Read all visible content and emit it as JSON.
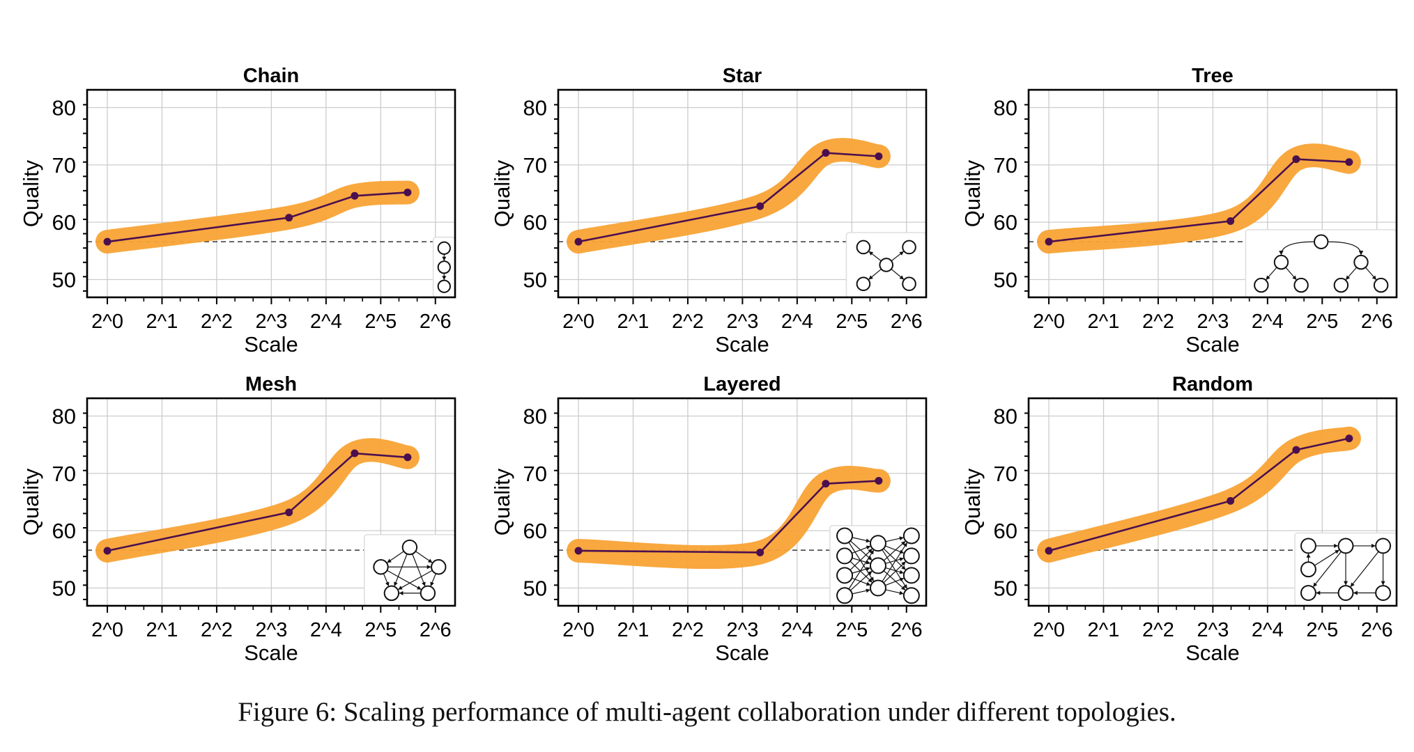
{
  "figure": {
    "caption": "Figure 6: Scaling performance of multi-agent collaboration under different topologies."
  },
  "chart_data": [
    {
      "type": "line",
      "title": "Chain",
      "xlabel": "Scale",
      "ylabel": "Quality",
      "x_scale": "log2",
      "x_ticks": [
        "2^0",
        "2^1",
        "2^2",
        "2^3",
        "2^4",
        "2^5",
        "2^6"
      ],
      "y_ticks": [
        50,
        60,
        70,
        80
      ],
      "ylim": [
        46.9,
        83.1
      ],
      "grid": true,
      "baseline": 56.6,
      "inset": "chain",
      "x": [
        1,
        10,
        23,
        45
      ],
      "values": [
        56.6,
        60.8,
        64.6,
        65.2
      ]
    },
    {
      "type": "line",
      "title": "Star",
      "xlabel": "Scale",
      "ylabel": "Quality",
      "x_scale": "log2",
      "x_ticks": [
        "2^0",
        "2^1",
        "2^2",
        "2^3",
        "2^4",
        "2^5",
        "2^6"
      ],
      "y_ticks": [
        50,
        60,
        70,
        80
      ],
      "ylim": [
        46.9,
        83.1
      ],
      "grid": true,
      "baseline": 56.6,
      "inset": "star",
      "x": [
        1,
        10,
        23,
        45
      ],
      "values": [
        56.6,
        62.8,
        72.1,
        71.5
      ]
    },
    {
      "type": "line",
      "title": "Tree",
      "xlabel": "Scale",
      "ylabel": "Quality",
      "x_scale": "log2",
      "x_ticks": [
        "2^0",
        "2^1",
        "2^2",
        "2^3",
        "2^4",
        "2^5",
        "2^6"
      ],
      "y_ticks": [
        50,
        60,
        70,
        80
      ],
      "ylim": [
        46.9,
        83.1
      ],
      "grid": true,
      "baseline": 56.6,
      "inset": "tree",
      "x": [
        1,
        10,
        23,
        45
      ],
      "values": [
        56.6,
        60.2,
        71.0,
        70.5
      ]
    },
    {
      "type": "line",
      "title": "Mesh",
      "xlabel": "Scale",
      "ylabel": "Quality",
      "x_scale": "log2",
      "x_ticks": [
        "2^0",
        "2^1",
        "2^2",
        "2^3",
        "2^4",
        "2^5",
        "2^6"
      ],
      "y_ticks": [
        50,
        60,
        70,
        80
      ],
      "ylim": [
        46.9,
        83.1
      ],
      "grid": true,
      "baseline": 56.6,
      "inset": "mesh",
      "x": [
        1,
        10,
        23,
        45
      ],
      "values": [
        56.5,
        63.2,
        73.5,
        72.8
      ]
    },
    {
      "type": "line",
      "title": "Layered",
      "xlabel": "Scale",
      "ylabel": "Quality",
      "x_scale": "log2",
      "x_ticks": [
        "2^0",
        "2^1",
        "2^2",
        "2^3",
        "2^4",
        "2^5",
        "2^6"
      ],
      "y_ticks": [
        50,
        60,
        70,
        80
      ],
      "ylim": [
        46.9,
        83.1
      ],
      "grid": true,
      "baseline": 56.6,
      "inset": "layered",
      "x": [
        1,
        10,
        23,
        45
      ],
      "values": [
        56.5,
        56.2,
        68.2,
        68.7
      ]
    },
    {
      "type": "line",
      "title": "Random",
      "xlabel": "Scale",
      "ylabel": "Quality",
      "x_scale": "log2",
      "x_ticks": [
        "2^0",
        "2^1",
        "2^2",
        "2^3",
        "2^4",
        "2^5",
        "2^6"
      ],
      "y_ticks": [
        50,
        60,
        70,
        80
      ],
      "ylim": [
        46.9,
        83.1
      ],
      "grid": true,
      "baseline": 56.6,
      "inset": "random",
      "x": [
        1,
        10,
        23,
        45
      ],
      "values": [
        56.5,
        65.2,
        74.1,
        76.1
      ]
    }
  ],
  "colors": {
    "line": "#4b0f4f",
    "band": "#f8a335",
    "grid": "#cccccc",
    "baseline": "#444444"
  }
}
